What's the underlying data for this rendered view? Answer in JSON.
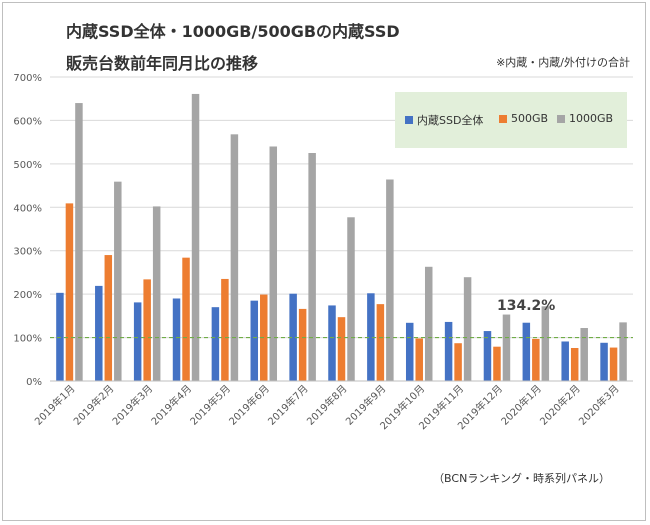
{
  "title_line1": "内蔵SSD全体・1000GB/500GBの内蔵SSD",
  "title_line2": "販売台数前年同月比の推移",
  "note": "※内蔵・内蔵/外付けの合計",
  "source": "（BCNランキング・時系列パネル）",
  "callout": "134.2%",
  "colors": {
    "all": "#4472c4",
    "gb500": "#ed7d31",
    "gb1000": "#a5a5a5",
    "refline": "#70ad47"
  },
  "chart_data": {
    "type": "bar",
    "title": "内蔵SSD全体・1000GB/500GBの内蔵SSD 販売台数前年同月比の推移",
    "categories": [
      "2019年1月",
      "2019年2月",
      "2019年3月",
      "2019年4月",
      "2019年5月",
      "2019年6月",
      "2019年7月",
      "2019年8月",
      "2019年9月",
      "2019年10月",
      "2019年11月",
      "2019年12月",
      "2020年1月",
      "2020年2月",
      "2020年3月"
    ],
    "series": [
      {
        "name": "内蔵SSD全体",
        "values": [
          203,
          219,
          181,
          190,
          170,
          185,
          201,
          174,
          202,
          134,
          136,
          115,
          134.2,
          91,
          88
        ]
      },
      {
        "name": "500GB",
        "values": [
          409,
          290,
          234,
          284,
          235,
          199,
          166,
          147,
          177,
          98,
          87,
          79,
          97,
          76,
          77
        ]
      },
      {
        "name": "1000GB",
        "values": [
          640,
          459,
          402,
          661,
          568,
          540,
          525,
          377,
          464,
          263,
          239,
          153,
          172,
          122,
          135
        ]
      }
    ],
    "yticks": [
      "0%",
      "100%",
      "200%",
      "300%",
      "400%",
      "500%",
      "600%",
      "700%"
    ],
    "ylim": [
      0,
      700
    ],
    "reference_line": 100,
    "xlabel": "",
    "ylabel": "",
    "legend": "top-right"
  }
}
